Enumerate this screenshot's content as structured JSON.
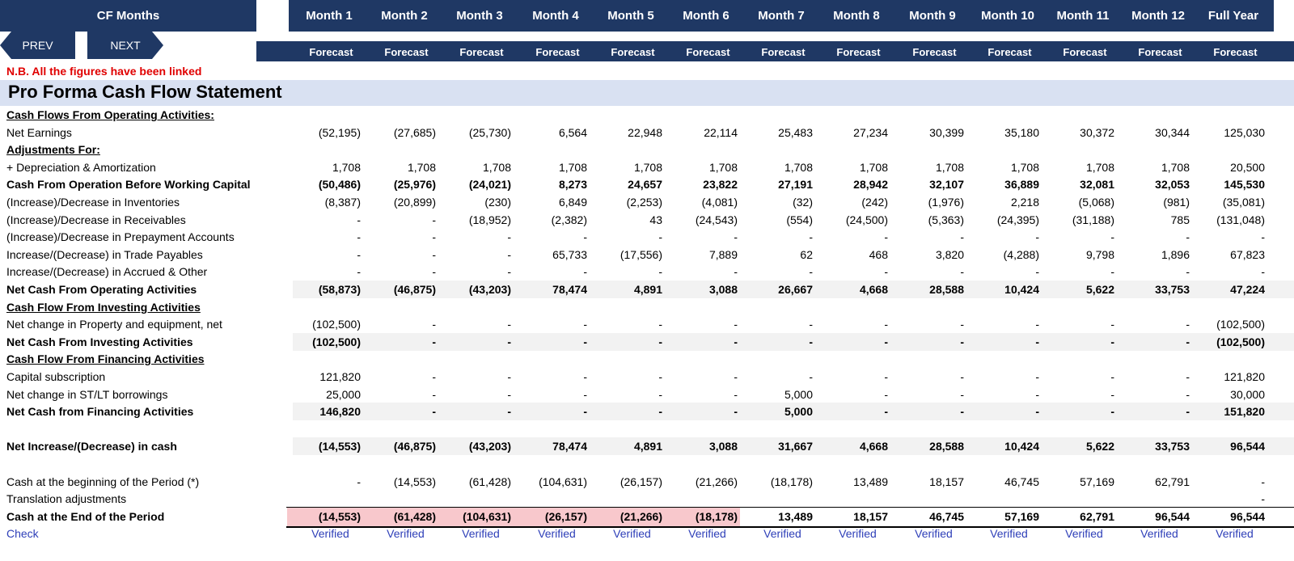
{
  "header": {
    "corner_label": "CF Months",
    "months": [
      "Month 1",
      "Month 2",
      "Month 3",
      "Month 4",
      "Month 5",
      "Month 6",
      "Month 7",
      "Month 8",
      "Month 9",
      "Month 10",
      "Month 11",
      "Month 12",
      "Full Year"
    ],
    "forecast_label": "Forecast"
  },
  "nav": {
    "prev_label": "PREV",
    "next_label": "NEXT"
  },
  "note": "N.B. All the figures have been linked",
  "title": "Pro Forma Cash Flow Statement",
  "rows": [
    {
      "label": "Cash Flows From Operating Activities:",
      "style": "section",
      "values": []
    },
    {
      "label": "Net Earnings",
      "style": "normal",
      "values": [
        "(52,195)",
        "(27,685)",
        "(25,730)",
        "6,564",
        "22,948",
        "22,114",
        "25,483",
        "27,234",
        "30,399",
        "35,180",
        "30,372",
        "30,344",
        "125,030"
      ]
    },
    {
      "label": "Adjustments For:",
      "style": "section",
      "values": []
    },
    {
      "label": " + Depreciation & Amortization",
      "style": "normal",
      "values": [
        "1,708",
        "1,708",
        "1,708",
        "1,708",
        "1,708",
        "1,708",
        "1,708",
        "1,708",
        "1,708",
        "1,708",
        "1,708",
        "1,708",
        "20,500"
      ]
    },
    {
      "label": "Cash From Operation Before Working Capital",
      "style": "bold",
      "values": [
        "(50,486)",
        "(25,976)",
        "(24,021)",
        "8,273",
        "24,657",
        "23,822",
        "27,191",
        "28,942",
        "32,107",
        "36,889",
        "32,081",
        "32,053",
        "145,530"
      ]
    },
    {
      "label": "(Increase)/Decrease in Inventories",
      "style": "normal",
      "values": [
        "(8,387)",
        "(20,899)",
        "(230)",
        "6,849",
        "(2,253)",
        "(4,081)",
        "(32)",
        "(242)",
        "(1,976)",
        "2,218",
        "(5,068)",
        "(981)",
        "(35,081)"
      ]
    },
    {
      "label": "(Increase)/Decrease in Receivables",
      "style": "normal",
      "values": [
        "-",
        "-",
        "(18,952)",
        "(2,382)",
        "43",
        "(24,543)",
        "(554)",
        "(24,500)",
        "(5,363)",
        "(24,395)",
        "(31,188)",
        "785",
        "(131,048)"
      ]
    },
    {
      "label": "(Increase)/Decrease in Prepayment Accounts",
      "style": "normal",
      "values": [
        "-",
        "-",
        "-",
        "-",
        "-",
        "-",
        "-",
        "-",
        "-",
        "-",
        "-",
        "-",
        "-"
      ]
    },
    {
      "label": "Increase/(Decrease) in Trade Payables",
      "style": "normal",
      "values": [
        "-",
        "-",
        "-",
        "65,733",
        "(17,556)",
        "7,889",
        "62",
        "468",
        "3,820",
        "(4,288)",
        "9,798",
        "1,896",
        "67,823"
      ]
    },
    {
      "label": "Increase/(Decrease) in Accrued & Other",
      "style": "normal",
      "values": [
        "-",
        "-",
        "-",
        "-",
        "-",
        "-",
        "-",
        "-",
        "-",
        "-",
        "-",
        "-",
        "-"
      ]
    },
    {
      "label": "Net Cash From Operating Activities",
      "style": "bold shaded",
      "values": [
        "(58,873)",
        "(46,875)",
        "(43,203)",
        "78,474",
        "4,891",
        "3,088",
        "26,667",
        "4,668",
        "28,588",
        "10,424",
        "5,622",
        "33,753",
        "47,224"
      ]
    },
    {
      "label": "Cash Flow From Investing Activities",
      "style": "section",
      "values": []
    },
    {
      "label": "Net change in Property and equipment, net",
      "style": "normal",
      "values": [
        "(102,500)",
        "-",
        "-",
        "-",
        "-",
        "-",
        "-",
        "-",
        "-",
        "-",
        "-",
        "-",
        "(102,500)"
      ]
    },
    {
      "label": "Net Cash From Investing Activities",
      "style": "bold shaded",
      "values": [
        "(102,500)",
        "-",
        "-",
        "-",
        "-",
        "-",
        "-",
        "-",
        "-",
        "-",
        "-",
        "-",
        "(102,500)"
      ]
    },
    {
      "label": "Cash Flow From Financing Activities",
      "style": "section",
      "values": []
    },
    {
      "label": "Capital subscription",
      "style": "normal",
      "values": [
        "121,820",
        "-",
        "-",
        "-",
        "-",
        "-",
        "-",
        "-",
        "-",
        "-",
        "-",
        "-",
        "121,820"
      ]
    },
    {
      "label": "Net change in ST/LT borrowings",
      "style": "normal",
      "values": [
        "25,000",
        "-",
        "-",
        "-",
        "-",
        "-",
        "5,000",
        "-",
        "-",
        "-",
        "-",
        "-",
        "30,000"
      ]
    },
    {
      "label": "Net Cash from Financing Activities",
      "style": "bold shaded",
      "values": [
        "146,820",
        "-",
        "-",
        "-",
        "-",
        "-",
        "5,000",
        "-",
        "-",
        "-",
        "-",
        "-",
        "151,820"
      ]
    },
    {
      "label": "",
      "style": "spacer",
      "values": []
    },
    {
      "label": "Net Increase/(Decrease) in cash",
      "style": "bold shaded",
      "values": [
        "(14,553)",
        "(46,875)",
        "(43,203)",
        "78,474",
        "4,891",
        "3,088",
        "31,667",
        "4,668",
        "28,588",
        "10,424",
        "5,622",
        "33,753",
        "96,544"
      ]
    },
    {
      "label": "",
      "style": "spacer",
      "values": []
    },
    {
      "label": "Cash at the beginning of the Period (*)",
      "style": "normal",
      "values": [
        "-",
        "(14,553)",
        "(61,428)",
        "(104,631)",
        "(26,157)",
        "(21,266)",
        "(18,178)",
        "13,489",
        "18,157",
        "46,745",
        "57,169",
        "62,791",
        "-"
      ]
    },
    {
      "label": "Translation adjustments",
      "style": "normal",
      "values": [
        "",
        "",
        "",
        "",
        "",
        "",
        "",
        "",
        "",
        "",
        "",
        "",
        "-"
      ]
    },
    {
      "label": "Cash at the End of the Period",
      "style": "bold end",
      "values": [
        "(14,553)",
        "(61,428)",
        "(104,631)",
        "(26,157)",
        "(21,266)",
        "(18,178)",
        "13,489",
        "18,157",
        "46,745",
        "57,169",
        "62,791",
        "96,544",
        "96,544"
      ]
    },
    {
      "label": "Check",
      "style": "check",
      "values": [
        "Verified",
        "Verified",
        "Verified",
        "Verified",
        "Verified",
        "Verified",
        "Verified",
        "Verified",
        "Verified",
        "Verified",
        "Verified",
        "Verified",
        "Verified"
      ]
    }
  ],
  "colors": {
    "header_bg": "#1f3864",
    "title_bg": "#d9e1f2",
    "note": "#e00000",
    "negative_end_bg": "#f8c8cc",
    "check": "#2e3fb8"
  }
}
